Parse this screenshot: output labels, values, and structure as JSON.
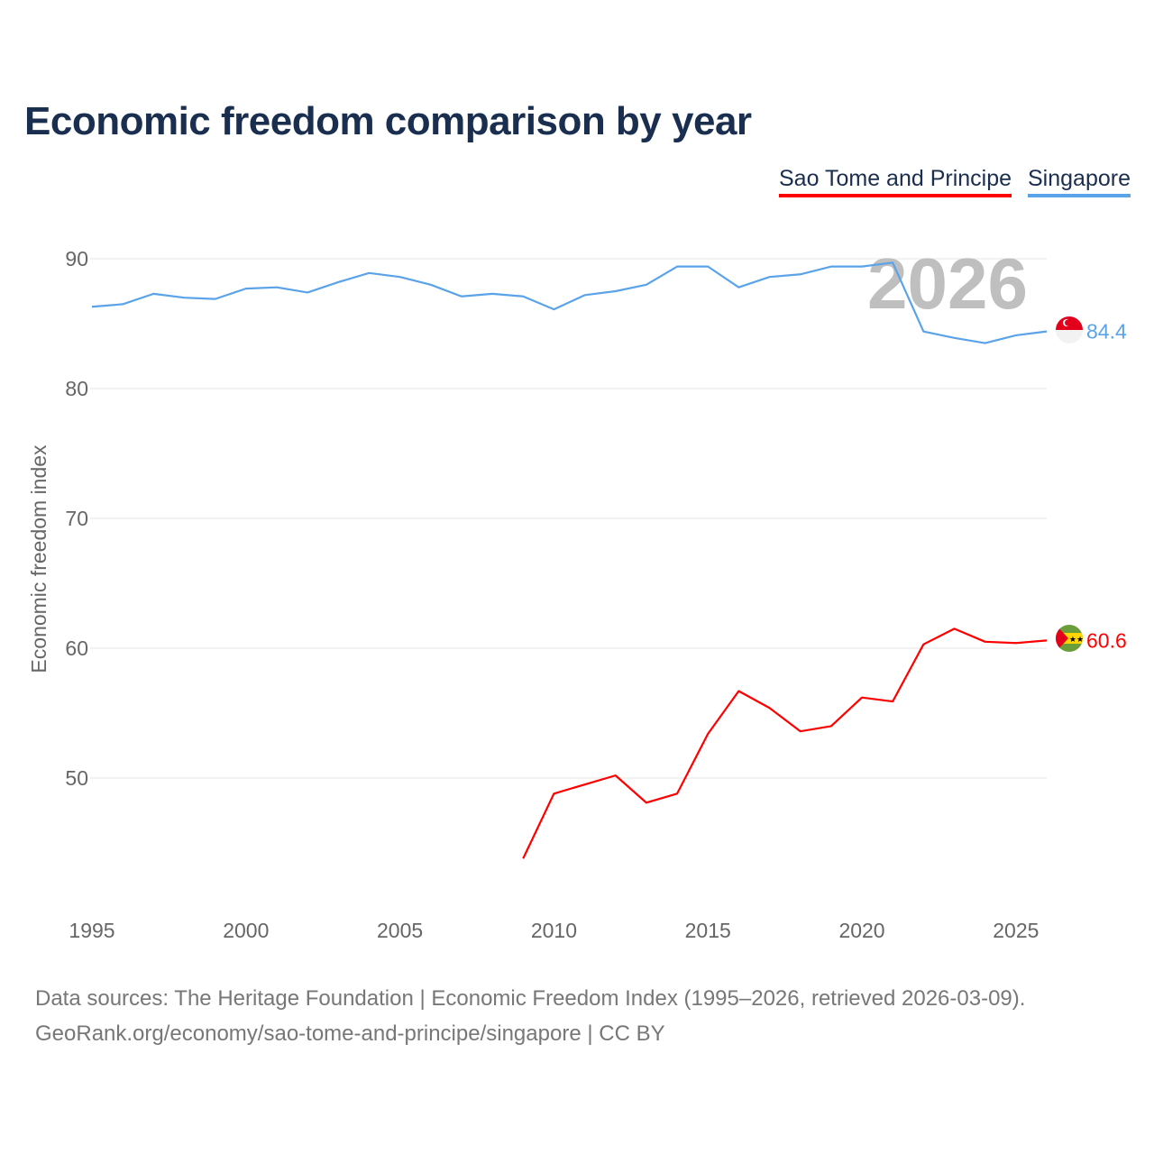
{
  "title": "Economic freedom comparison by year",
  "legend": [
    {
      "label": "Sao Tome and Principe",
      "color": "#ff0000"
    },
    {
      "label": "Singapore",
      "color": "#5ba3e8"
    }
  ],
  "watermark_year": "2026",
  "source_line1": "Data sources: The Heritage Foundation | Economic Freedom Index (1995–2026, retrieved 2026-03-09).",
  "source_line2": "GeoRank.org/economy/sao-tome-and-principe/singapore | CC BY",
  "chart_data": {
    "type": "line",
    "title": "Economic freedom comparison by year",
    "xlabel": "",
    "ylabel": "Economic freedom index",
    "xlim": [
      1995,
      2026
    ],
    "ylim": [
      40,
      92
    ],
    "xticks": [
      1995,
      2000,
      2005,
      2010,
      2015,
      2020,
      2025
    ],
    "yticks": [
      50,
      60,
      70,
      80,
      90
    ],
    "grid": true,
    "legend_position": "top-right",
    "series": [
      {
        "name": "Singapore",
        "color": "#5ba3e8",
        "end_label": "84.4",
        "x": [
          1995,
          1996,
          1997,
          1998,
          1999,
          2000,
          2001,
          2002,
          2003,
          2004,
          2005,
          2006,
          2007,
          2008,
          2009,
          2010,
          2011,
          2012,
          2013,
          2014,
          2015,
          2016,
          2017,
          2018,
          2019,
          2020,
          2021,
          2022,
          2023,
          2024,
          2025,
          2026
        ],
        "y": [
          86.3,
          86.5,
          87.3,
          87.0,
          86.9,
          87.7,
          87.8,
          87.4,
          88.2,
          88.9,
          88.6,
          88.0,
          87.1,
          87.3,
          87.1,
          86.1,
          87.2,
          87.5,
          88.0,
          89.4,
          89.4,
          87.8,
          88.6,
          88.8,
          89.4,
          89.4,
          89.7,
          84.4,
          83.9,
          83.5,
          84.1,
          84.4
        ]
      },
      {
        "name": "Sao Tome and Principe",
        "color": "#ff0000",
        "end_label": "60.6",
        "x": [
          2009,
          2010,
          2011,
          2012,
          2013,
          2014,
          2015,
          2016,
          2017,
          2018,
          2019,
          2020,
          2021,
          2022,
          2023,
          2024,
          2025,
          2026
        ],
        "y": [
          43.8,
          48.8,
          49.5,
          50.2,
          48.1,
          48.8,
          53.4,
          56.7,
          55.4,
          53.6,
          54.0,
          56.2,
          55.9,
          60.3,
          61.5,
          60.5,
          60.4,
          60.6
        ]
      }
    ]
  }
}
